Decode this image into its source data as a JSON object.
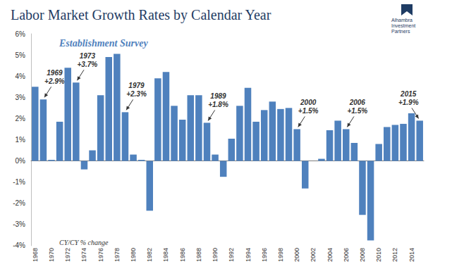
{
  "chart_data": {
    "type": "bar",
    "title": "Labor Market Growth Rates by Calendar Year",
    "subtitle": "Establishment Survey",
    "note": "CY/CY % change",
    "logo": [
      "Alhambra",
      "Investment",
      "Partners"
    ],
    "categories": [
      "1968",
      null,
      "1970",
      null,
      "1972",
      null,
      "1974",
      null,
      "1976",
      null,
      "1978",
      null,
      "1980",
      null,
      "1982",
      null,
      "1984",
      null,
      "1986",
      null,
      "1988",
      null,
      "1990",
      null,
      "1992",
      null,
      "1994",
      null,
      "1996",
      null,
      "1998",
      null,
      "2000",
      null,
      "2002",
      null,
      "2004",
      null,
      "2006",
      null,
      "2008",
      null,
      "2010",
      null,
      "2012",
      null,
      "2014",
      null
    ],
    "values": [
      3.5,
      2.9,
      0.05,
      1.85,
      4.4,
      3.7,
      -0.4,
      0.5,
      3.1,
      4.9,
      5.05,
      2.3,
      0.3,
      0.05,
      -2.35,
      3.9,
      4.2,
      2.6,
      1.95,
      3.1,
      3.1,
      1.8,
      0.3,
      -0.75,
      1.05,
      2.6,
      3.45,
      1.85,
      2.4,
      2.8,
      2.45,
      2.5,
      1.5,
      -1.3,
      0.0,
      0.1,
      1.45,
      1.9,
      1.5,
      0.85,
      -2.55,
      -3.75,
      0.8,
      1.6,
      1.7,
      1.75,
      2.25,
      1.9
    ],
    "color": "#4f81bd",
    "ylim": [
      -4,
      6
    ],
    "yticks": [
      {
        "value": -4,
        "label": "-4%"
      },
      {
        "value": -3,
        "label": "-3%"
      },
      {
        "value": -2,
        "label": "-2%"
      },
      {
        "value": -1,
        "label": "-1%"
      },
      {
        "value": 0,
        "label": "0%"
      },
      {
        "value": 1,
        "label": "1%"
      },
      {
        "value": 2,
        "label": "2%"
      },
      {
        "value": 3,
        "label": "3%"
      },
      {
        "value": 4,
        "label": "4%"
      },
      {
        "value": 5,
        "label": "5%"
      },
      {
        "value": 6,
        "label": "6%"
      }
    ],
    "grid": false,
    "annotations": [
      {
        "text": [
          "1969",
          "+2.9%"
        ]
      },
      {
        "text": [
          "1973",
          "+3.7%"
        ]
      },
      {
        "text": [
          "1979",
          "+2.3%"
        ]
      },
      {
        "text": [
          "1989",
          "+1.8%"
        ]
      },
      {
        "text": [
          "2000",
          "+1.5%"
        ]
      },
      {
        "text": [
          "2006",
          "+1.5%"
        ]
      },
      {
        "text": [
          "2015",
          "+1.9%"
        ]
      }
    ]
  }
}
